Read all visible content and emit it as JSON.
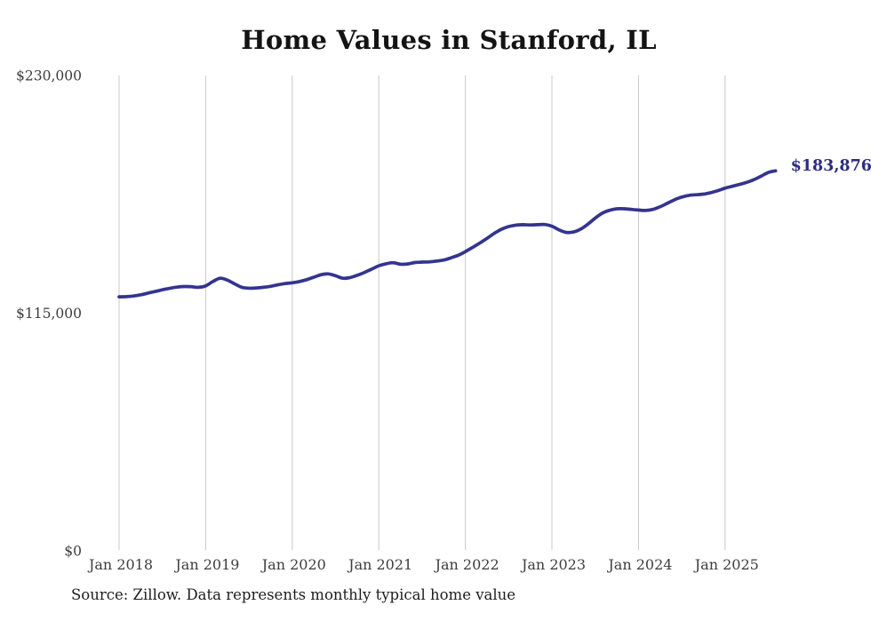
{
  "title": "Home Values in Stanford, IL",
  "source_note": "Source: Zillow. Data represents monthly typical home value",
  "end_label": "$183,876",
  "colors": {
    "line": "#34348f",
    "end_label": "#2c2c80",
    "grid": "#c9c9c9",
    "axis_text": "#3d3d3d",
    "title_text": "#141414",
    "source_text": "#1e1e1e",
    "background": "#ffffff"
  },
  "chart_data": {
    "type": "line",
    "title": "Home Values in Stanford, IL",
    "series_name": "Monthly typical home value",
    "x_start": "Jan 2018",
    "x_end": "Aug 2025",
    "months_per_point": 1,
    "x_tick_labels": [
      "Jan 2018",
      "Jan 2019",
      "Jan 2020",
      "Jan 2021",
      "Jan 2022",
      "Jan 2023",
      "Jan 2024",
      "Jan 2025"
    ],
    "y_ticks": [
      {
        "value": 230000,
        "label": "$230,000"
      },
      {
        "value": 115000,
        "label": "$115,000"
      },
      {
        "value": 0,
        "label": "$0"
      }
    ],
    "ylim": [
      0,
      230000
    ],
    "grid": "vertical-only",
    "legend": "none",
    "final_value": 183876,
    "values": [
      122900,
      123000,
      123300,
      123900,
      124700,
      125500,
      126300,
      127000,
      127600,
      127900,
      127800,
      127500,
      128200,
      130300,
      131900,
      131000,
      129200,
      127500,
      127100,
      127200,
      127500,
      128000,
      128700,
      129300,
      129700,
      130300,
      131200,
      132400,
      133600,
      134000,
      133100,
      131900,
      132200,
      133300,
      134700,
      136300,
      137900,
      138900,
      139400,
      138700,
      138800,
      139500,
      139700,
      139800,
      140200,
      140700,
      141800,
      143000,
      144800,
      146800,
      148900,
      151200,
      153600,
      155600,
      156900,
      157600,
      157800,
      157700,
      157800,
      157900,
      157100,
      155300,
      154100,
      154300,
      155700,
      158100,
      161000,
      163400,
      164800,
      165500,
      165500,
      165200,
      164900,
      164700,
      165200,
      166500,
      168200,
      169900,
      171200,
      172000,
      172300,
      172600,
      173300,
      174300,
      175500,
      176400,
      177300,
      178300,
      179600,
      181300,
      183100,
      183876
    ]
  }
}
